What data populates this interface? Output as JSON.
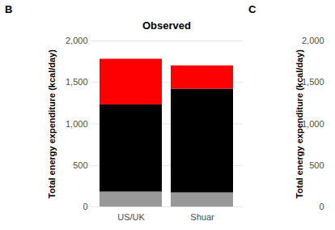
{
  "chart_data": [
    {
      "type": "bar",
      "stacked": true,
      "annotations": [
        "B"
      ],
      "title": "Observed",
      "y_label": "Total energy expenditure (kcal/day)",
      "categories": [
        "US/UK",
        "Shuar"
      ],
      "series": [
        {
          "color": "#999999",
          "values": [
            180,
            170
          ]
        },
        {
          "color": "#000000",
          "values": [
            1050,
            1250
          ]
        },
        {
          "color": "#ff0000",
          "values": [
            550,
            280
          ]
        }
      ],
      "ylim": [
        0,
        2000
      ],
      "yticks": [
        0,
        500,
        1000,
        1500,
        2000
      ],
      "grid": true
    },
    {
      "type": "bar",
      "annotations": [
        "C"
      ],
      "y_label": "Total energy expenditure (kcal/day)",
      "categories": [],
      "series": [],
      "ylim": [
        0,
        2000
      ],
      "yticks": [
        0,
        500,
        1000,
        1500,
        2000
      ],
      "grid": true
    }
  ]
}
